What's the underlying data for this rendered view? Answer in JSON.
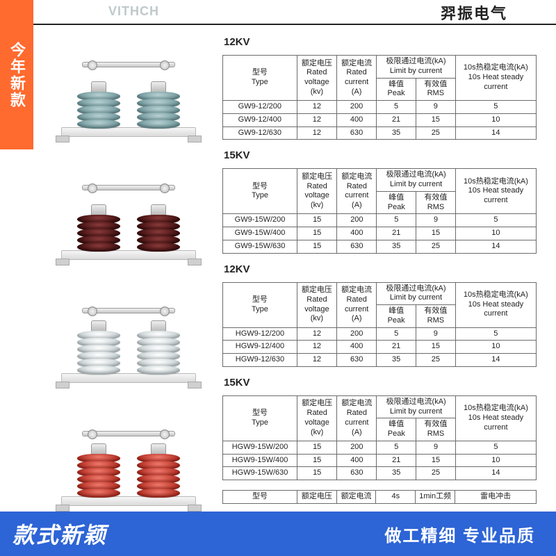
{
  "header": {
    "brand_en": "VITHCH",
    "brand_cn": "羿振电气"
  },
  "badges": {
    "side": "今年新款"
  },
  "footer": {
    "left": "款式新颖",
    "right": "做工精细 专业品质"
  },
  "colors": {
    "badge_bg": "#ff6a2f",
    "footer_bg": "#2d64d6",
    "text": "#222222",
    "border": "#6b6b6b",
    "brand_faded": "#bfc9cc"
  },
  "products": [
    {
      "color": "#7fa9ad",
      "disc_style": "background:radial-gradient(ellipse at 50% 35%,#b8d0d2,#6f989c 70%);"
    },
    {
      "color": "#5a1616",
      "disc_style": "background:radial-gradient(ellipse at 50% 35%,#8a3a3a,#3d0e0e 70%);"
    },
    {
      "color": "#dfe6e8",
      "disc_style": "background:radial-gradient(ellipse at 50% 35%,#ffffff,#c6d0d3 70%);"
    },
    {
      "color": "#d0382a",
      "disc_style": "background:radial-gradient(ellipse at 50% 35%,#ef7a6d,#b02a1e 70%);"
    }
  ],
  "columns": {
    "model_cn": "型号",
    "model_en": "Type",
    "voltage_cn": "额定电压",
    "voltage_en": "Rated voltage",
    "voltage_unit": "(kv)",
    "current_cn": "额定电流",
    "current_en": "Rated current",
    "current_unit": "(A)",
    "limit_group": "极限通过电流(kA) Limit by current",
    "peak_cn": "峰值",
    "peak_en": "Peak",
    "rms_cn": "有效值",
    "rms_en": "RMS",
    "steady_cn": "10s热稳定电流(kA)",
    "steady_en": "10s Heat steady current"
  },
  "sections": [
    {
      "heading": "12KV",
      "rows": [
        {
          "model": "GW9-12/200",
          "voltage": "12",
          "current": "200",
          "peak": "5",
          "rms": "9",
          "steady": "5"
        },
        {
          "model": "GW9-12/400",
          "voltage": "12",
          "current": "400",
          "peak": "21",
          "rms": "15",
          "steady": "10"
        },
        {
          "model": "GW9-12/630",
          "voltage": "12",
          "current": "630",
          "peak": "35",
          "rms": "25",
          "steady": "14"
        }
      ]
    },
    {
      "heading": "15KV",
      "rows": [
        {
          "model": "GW9-15W/200",
          "voltage": "15",
          "current": "200",
          "peak": "5",
          "rms": "9",
          "steady": "5"
        },
        {
          "model": "GW9-15W/400",
          "voltage": "15",
          "current": "400",
          "peak": "21",
          "rms": "15",
          "steady": "10"
        },
        {
          "model": "GW9-15W/630",
          "voltage": "15",
          "current": "630",
          "peak": "35",
          "rms": "25",
          "steady": "14"
        }
      ]
    },
    {
      "heading": "12KV",
      "rows": [
        {
          "model": "HGW9-12/200",
          "voltage": "12",
          "current": "200",
          "peak": "5",
          "rms": "9",
          "steady": "5"
        },
        {
          "model": "HGW9-12/400",
          "voltage": "12",
          "current": "400",
          "peak": "21",
          "rms": "15",
          "steady": "10"
        },
        {
          "model": "HGW9-12/630",
          "voltage": "12",
          "current": "630",
          "peak": "35",
          "rms": "25",
          "steady": "14"
        }
      ]
    },
    {
      "heading": "15KV",
      "rows": [
        {
          "model": "HGW9-15W/200",
          "voltage": "15",
          "current": "200",
          "peak": "5",
          "rms": "9",
          "steady": "5"
        },
        {
          "model": "HGW9-15W/400",
          "voltage": "15",
          "current": "400",
          "peak": "21",
          "rms": "15",
          "steady": "10"
        },
        {
          "model": "HGW9-15W/630",
          "voltage": "15",
          "current": "630",
          "peak": "35",
          "rms": "25",
          "steady": "14"
        }
      ]
    }
  ],
  "partial": {
    "model": "型号",
    "voltage": "额定电压",
    "current": "额定电流",
    "col4": "4s",
    "col5": "1min工频",
    "col6": "雷电冲击"
  }
}
